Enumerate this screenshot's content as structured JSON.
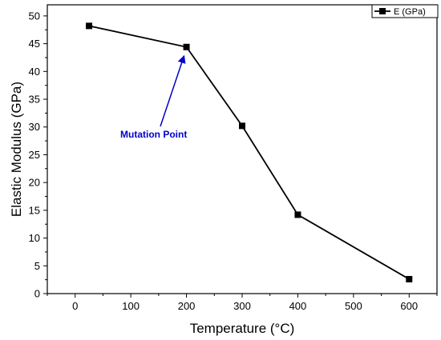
{
  "chart_data": {
    "type": "line",
    "title": "",
    "xlabel": "Temperature (°C)",
    "ylabel": "Elastic Modulus (GPa)",
    "xlim": [
      -50,
      650
    ],
    "ylim": [
      0,
      52
    ],
    "xticks": [
      0,
      100,
      200,
      300,
      400,
      500,
      600
    ],
    "yticks": [
      0,
      5,
      10,
      15,
      20,
      25,
      30,
      35,
      40,
      45,
      50
    ],
    "grid": false,
    "legend_position": "top-right",
    "series": [
      {
        "name": "E (GPa)",
        "marker": "square",
        "color": "#000000",
        "x": [
          25,
          200,
          300,
          400,
          600
        ],
        "y": [
          48.2,
          44.4,
          30.2,
          14.2,
          2.6
        ]
      }
    ],
    "annotations": [
      {
        "text": "Mutation Point",
        "color": "#0000cc",
        "points_to": {
          "x": 200,
          "y": 44.4
        }
      }
    ]
  }
}
